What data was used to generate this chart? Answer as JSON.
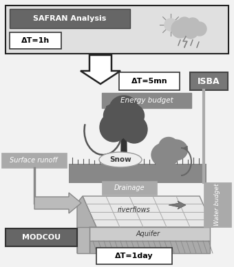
{
  "bg_color": "#f2f2f2",
  "safran_label": "SAFRAN Analysis",
  "safran_dt": "ΔT=1h",
  "isba_label": "ISBA",
  "dt5mn_label": "ΔT=5mn",
  "energy_label": "Energy budget",
  "surface_runoff_label": "Surface runoff",
  "drainage_label": "Drainage",
  "water_budget_label": "Water budget",
  "modcou_label": "MODCOU",
  "dt1day_label": "ΔT=1day",
  "riverflows_label": "riverflows",
  "aquifer_label": "Aquifer",
  "snow_label": "Snow"
}
